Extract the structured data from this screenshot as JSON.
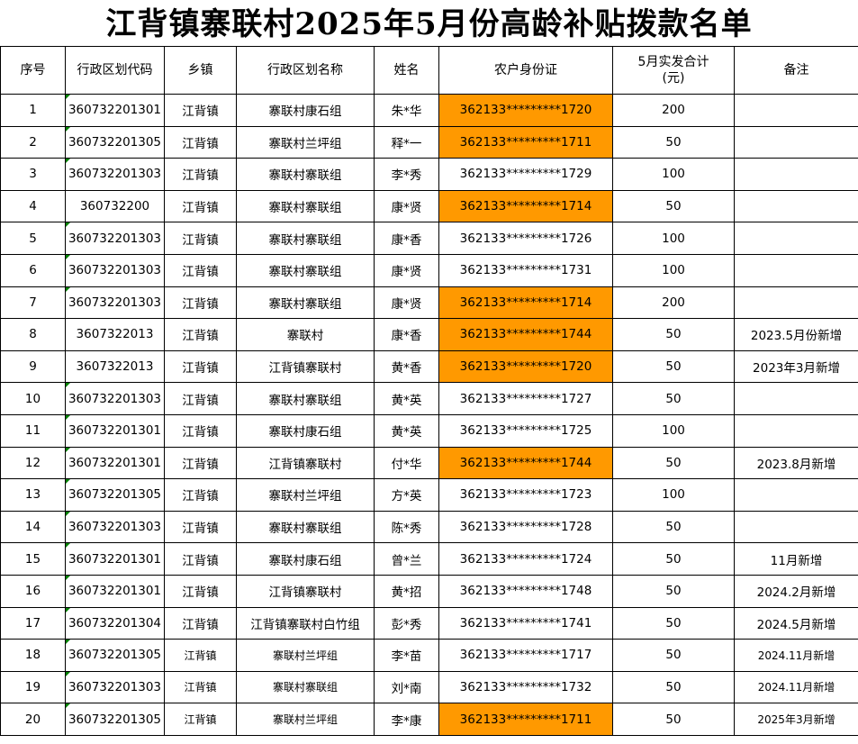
{
  "title": "江背镇寨联村2025年5月份高龄补贴拨款名单",
  "headers": [
    "序号",
    "行政区划代码",
    "乡镇",
    "行政区划名称",
    "姓名",
    "农户身份证",
    "5月实发合计\n(元)",
    "备注"
  ],
  "highlight_color": "#FF9900",
  "rows": [
    {
      "no": "1",
      "code": "360732201301",
      "town": "江背镇",
      "area": "寨联村康石组",
      "name": "朱*华",
      "id": "362133*********1720",
      "amount": "200",
      "note": "",
      "highlight": true
    },
    {
      "no": "2",
      "code": "360732201305",
      "town": "江背镇",
      "area": "寨联村兰坪组",
      "name": "释*一",
      "id": "362133*********1711",
      "amount": "50",
      "note": "",
      "highlight": true
    },
    {
      "no": "3",
      "code": "360732201303",
      "town": "江背镇",
      "area": "寨联村寨联组",
      "name": "李*秀",
      "id": "362133*********1729",
      "amount": "100",
      "note": "",
      "highlight": false
    },
    {
      "no": "4",
      "code": "360732200",
      "town": "江背镇",
      "area": "寨联村寨联组",
      "name": "康*贤",
      "id": "362133*********1714",
      "amount": "50",
      "note": "",
      "highlight": true
    },
    {
      "no": "5",
      "code": "360732201303",
      "town": "江背镇",
      "area": "寨联村寨联组",
      "name": "康*香",
      "id": "362133*********1726",
      "amount": "100",
      "note": "",
      "highlight": false
    },
    {
      "no": "6",
      "code": "360732201303",
      "town": "江背镇",
      "area": "寨联村寨联组",
      "name": "康*贤",
      "id": "362133*********1731",
      "amount": "100",
      "note": "",
      "highlight": false
    },
    {
      "no": "7",
      "code": "360732201303",
      "town": "江背镇",
      "area": "寨联村寨联组",
      "name": "康*贤",
      "id": "362133*********1714",
      "amount": "200",
      "note": "",
      "highlight": true
    },
    {
      "no": "8",
      "code": "3607322013",
      "town": "江背镇",
      "area": "寨联村",
      "name": "康*香",
      "id": "362133*********1744",
      "amount": "50",
      "note": "2023.5月份新增",
      "highlight": true
    },
    {
      "no": "9",
      "code": "3607322013",
      "town": "江背镇",
      "area": "江背镇寨联村",
      "name": "黄*香",
      "id": "362133*********1720",
      "amount": "50",
      "note": "2023年3月新增",
      "highlight": true
    },
    {
      "no": "10",
      "code": "360732201303",
      "town": "江背镇",
      "area": "寨联村寨联组",
      "name": "黄*英",
      "id": "362133*********1727",
      "amount": "50",
      "note": "",
      "highlight": false
    },
    {
      "no": "11",
      "code": "360732201301",
      "town": "江背镇",
      "area": "寨联村康石组",
      "name": "黄*英",
      "id": "362133*********1725",
      "amount": "100",
      "note": "",
      "highlight": false
    },
    {
      "no": "12",
      "code": "360732201301",
      "town": "江背镇",
      "area": "江背镇寨联村",
      "name": "付*华",
      "id": "362133*********1744",
      "amount": "50",
      "note": "2023.8月新增",
      "highlight": true
    },
    {
      "no": "13",
      "code": "360732201305",
      "town": "江背镇",
      "area": "寨联村兰坪组",
      "name": "方*英",
      "id": "362133*********1723",
      "amount": "100",
      "note": "",
      "highlight": false
    },
    {
      "no": "14",
      "code": "360732201303",
      "town": "江背镇",
      "area": "寨联村寨联组",
      "name": "陈*秀",
      "id": "362133*********1728",
      "amount": "50",
      "note": "",
      "highlight": false
    },
    {
      "no": "15",
      "code": "360732201301",
      "town": "江背镇",
      "area": "寨联村康石组",
      "name": "曾*兰",
      "id": "362133*********1724",
      "amount": "50",
      "note": "11月新增",
      "highlight": false
    },
    {
      "no": "16",
      "code": "360732201301",
      "town": "江背镇",
      "area": "江背镇寨联村",
      "name": "黄*招",
      "id": "362133*********1748",
      "amount": "50",
      "note": "2024.2月新增",
      "highlight": false
    },
    {
      "no": "17",
      "code": "360732201304",
      "town": "江背镇",
      "area": "江背镇寨联村白竹组",
      "name": "彭*秀",
      "id": "362133*********1741",
      "amount": "50",
      "note": "2024.5月新增",
      "highlight": false
    },
    {
      "no": "18",
      "code": "360732201305",
      "town": "江背镇",
      "area": "寨联村兰坪组",
      "name": "李*苗",
      "id": "362133*********1717",
      "amount": "50",
      "note": "2024.11月新增",
      "highlight": false
    },
    {
      "no": "19",
      "code": "360732201303",
      "town": "江背镇",
      "area": "寨联村寨联组",
      "name": "刘*南",
      "id": "362133*********1732",
      "amount": "50",
      "note": "2024.11月新增",
      "highlight": false
    },
    {
      "no": "20",
      "code": "360732201305",
      "town": "江背镇",
      "area": "寨联村兰坪组",
      "name": "李*康",
      "id": "362133*********1711",
      "amount": "50",
      "note": "2025年3月新增",
      "highlight": true
    }
  ]
}
